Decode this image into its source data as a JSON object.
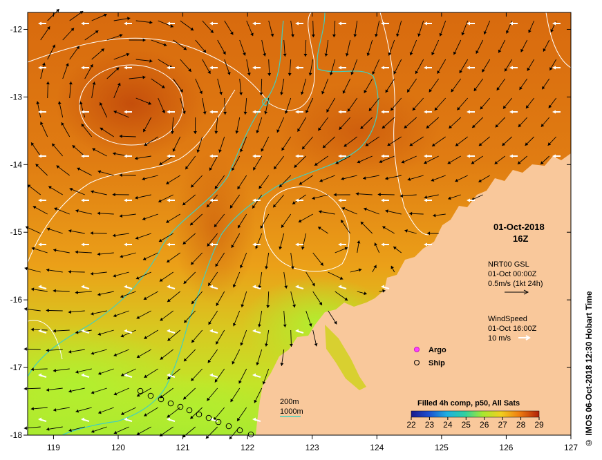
{
  "map": {
    "date_label": "01-Oct-2018",
    "time_label": "16Z",
    "x_ticks": [
      "119",
      "120",
      "121",
      "122",
      "123",
      "124",
      "125",
      "126",
      "127"
    ],
    "y_ticks": [
      "-12",
      "-13",
      "-14",
      "-15",
      "-16",
      "-17",
      "-18"
    ],
    "lon_range": [
      118.6,
      127
    ],
    "lat_range": [
      -18,
      -11.75
    ],
    "currents": {
      "source": "NRT00 GSL",
      "time": "01-Oct 00:00Z",
      "scale": "0.5m/s (1kt 24h)"
    },
    "wind": {
      "title": "WindSpeed",
      "time": "01-Oct 16:00Z",
      "scale": "10 m/s"
    },
    "legend": {
      "argo": "Argo",
      "ship": "Ship"
    },
    "isobaths": {
      "shallow": "200m",
      "deep": "1000m"
    },
    "colorbar": {
      "title": "Filled 4h comp, p50, All Sats",
      "ticks": [
        "22",
        "23",
        "24",
        "25",
        "26",
        "27",
        "28",
        "29"
      ],
      "range": [
        22,
        29
      ]
    },
    "credit": "© IMOS 06-Oct-2018 12:30 Hobart Time",
    "colors": {
      "land": "#f9c89b",
      "warm": "#c9520c",
      "cool": "#b8f02a",
      "isobath_200": "#40d0c0",
      "isobath_1000": "#ffffff"
    }
  }
}
